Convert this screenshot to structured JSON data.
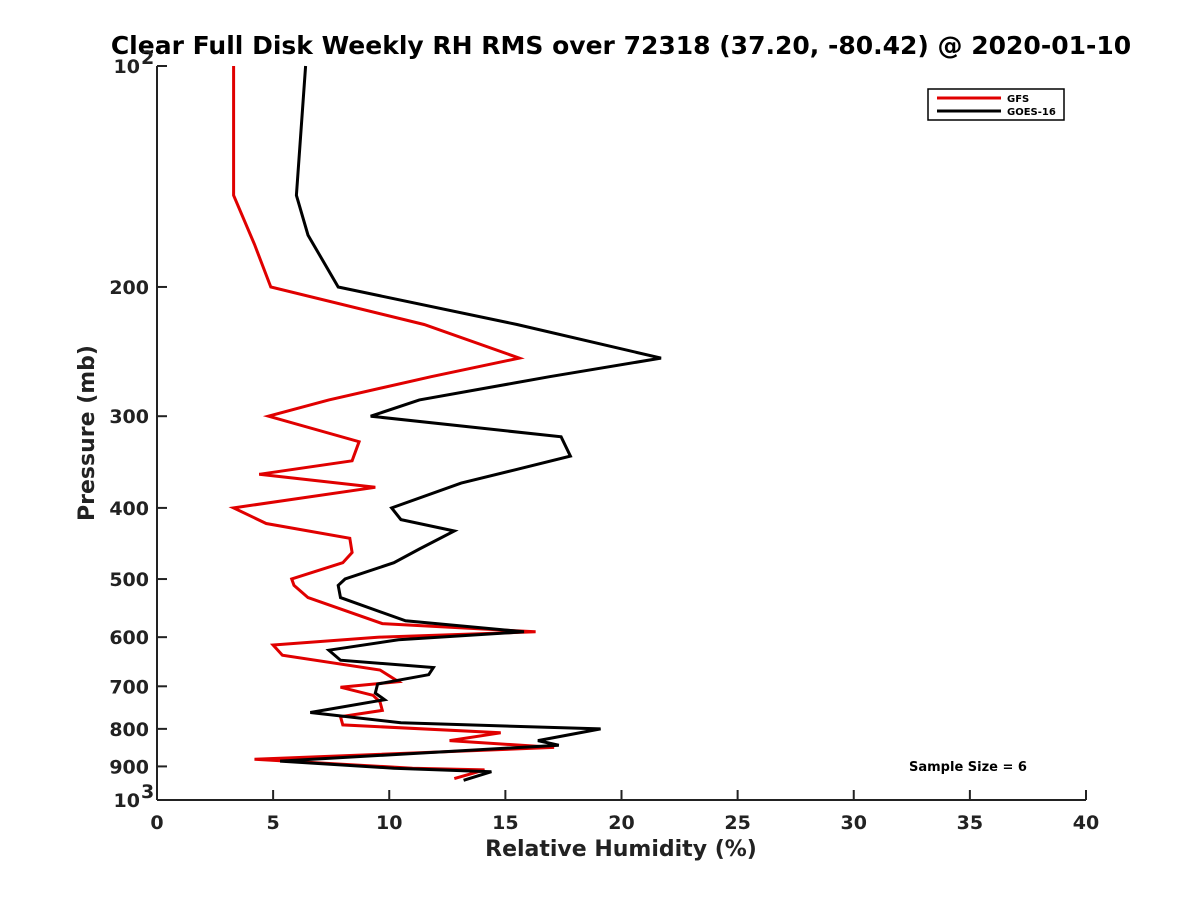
{
  "chart_data": {
    "type": "line",
    "title": "Clear Full Disk Weekly RH RMS over 72318 (37.20, -80.42) @ 2020-01-10",
    "xlabel": "Relative Humidity (%)",
    "ylabel": "Pressure (mb)",
    "xlim": [
      0,
      40
    ],
    "ylim": [
      100,
      1000
    ],
    "y_scale": "log",
    "y_reversed": true,
    "x_ticks": [
      "0",
      "5",
      "10",
      "15",
      "20",
      "25",
      "30",
      "35",
      "40"
    ],
    "y_ticks": [
      {
        "value": 100,
        "base": "10",
        "exp": "2"
      },
      {
        "value": 200,
        "label": "200"
      },
      {
        "value": 300,
        "label": "300"
      },
      {
        "value": 400,
        "label": "400"
      },
      {
        "value": 500,
        "label": "500"
      },
      {
        "value": 600,
        "label": "600"
      },
      {
        "value": 700,
        "label": "700"
      },
      {
        "value": 800,
        "label": "800"
      },
      {
        "value": 900,
        "label": "900"
      },
      {
        "value": 1000,
        "base": "10",
        "exp": "3"
      }
    ],
    "grid": false,
    "legend_position": "top-right",
    "annotation": "Sample Size = 6",
    "series": [
      {
        "name": "GFS",
        "color": "#e00000",
        "points": [
          {
            "x": 3.3,
            "p": 100
          },
          {
            "x": 3.3,
            "p": 150
          },
          {
            "x": 4.2,
            "p": 175
          },
          {
            "x": 4.9,
            "p": 200
          },
          {
            "x": 11.5,
            "p": 225
          },
          {
            "x": 15.6,
            "p": 250
          },
          {
            "x": 11.8,
            "p": 265
          },
          {
            "x": 7.4,
            "p": 285
          },
          {
            "x": 4.8,
            "p": 300
          },
          {
            "x": 8.7,
            "p": 325
          },
          {
            "x": 8.4,
            "p": 345
          },
          {
            "x": 4.4,
            "p": 360
          },
          {
            "x": 9.4,
            "p": 375
          },
          {
            "x": 3.3,
            "p": 400
          },
          {
            "x": 4.7,
            "p": 420
          },
          {
            "x": 8.3,
            "p": 440
          },
          {
            "x": 8.4,
            "p": 460
          },
          {
            "x": 8.0,
            "p": 475
          },
          {
            "x": 5.8,
            "p": 500
          },
          {
            "x": 5.9,
            "p": 510
          },
          {
            "x": 6.5,
            "p": 530
          },
          {
            "x": 9.7,
            "p": 575
          },
          {
            "x": 16.3,
            "p": 590
          },
          {
            "x": 9.5,
            "p": 600
          },
          {
            "x": 5.0,
            "p": 615
          },
          {
            "x": 5.4,
            "p": 635
          },
          {
            "x": 9.6,
            "p": 665
          },
          {
            "x": 10.4,
            "p": 690
          },
          {
            "x": 7.9,
            "p": 702
          },
          {
            "x": 9.3,
            "p": 720
          },
          {
            "x": 9.6,
            "p": 735
          },
          {
            "x": 9.7,
            "p": 755
          },
          {
            "x": 7.9,
            "p": 770
          },
          {
            "x": 8.0,
            "p": 790
          },
          {
            "x": 14.8,
            "p": 810
          },
          {
            "x": 12.6,
            "p": 830
          },
          {
            "x": 17.1,
            "p": 848
          },
          {
            "x": 4.2,
            "p": 880
          },
          {
            "x": 11.0,
            "p": 905
          },
          {
            "x": 14.1,
            "p": 910
          },
          {
            "x": 12.8,
            "p": 935
          }
        ]
      },
      {
        "name": "GOES-16",
        "color": "#000000",
        "points": [
          {
            "x": 6.4,
            "p": 100
          },
          {
            "x": 6.0,
            "p": 150
          },
          {
            "x": 6.5,
            "p": 170
          },
          {
            "x": 7.8,
            "p": 200
          },
          {
            "x": 15.5,
            "p": 225
          },
          {
            "x": 21.7,
            "p": 250
          },
          {
            "x": 16.9,
            "p": 265
          },
          {
            "x": 11.3,
            "p": 285
          },
          {
            "x": 9.2,
            "p": 300
          },
          {
            "x": 17.4,
            "p": 320
          },
          {
            "x": 17.8,
            "p": 340
          },
          {
            "x": 15.4,
            "p": 355
          },
          {
            "x": 13.1,
            "p": 370
          },
          {
            "x": 10.1,
            "p": 400
          },
          {
            "x": 10.5,
            "p": 415
          },
          {
            "x": 12.8,
            "p": 430
          },
          {
            "x": 11.3,
            "p": 455
          },
          {
            "x": 10.2,
            "p": 475
          },
          {
            "x": 8.1,
            "p": 500
          },
          {
            "x": 7.8,
            "p": 510
          },
          {
            "x": 7.9,
            "p": 530
          },
          {
            "x": 10.7,
            "p": 570
          },
          {
            "x": 15.8,
            "p": 590
          },
          {
            "x": 10.4,
            "p": 605
          },
          {
            "x": 7.4,
            "p": 625
          },
          {
            "x": 7.9,
            "p": 645
          },
          {
            "x": 11.9,
            "p": 660
          },
          {
            "x": 11.7,
            "p": 675
          },
          {
            "x": 9.5,
            "p": 695
          },
          {
            "x": 9.4,
            "p": 715
          },
          {
            "x": 9.8,
            "p": 730
          },
          {
            "x": 6.6,
            "p": 760
          },
          {
            "x": 10.5,
            "p": 785
          },
          {
            "x": 19.1,
            "p": 800
          },
          {
            "x": 16.4,
            "p": 830
          },
          {
            "x": 17.3,
            "p": 842
          },
          {
            "x": 5.3,
            "p": 885
          },
          {
            "x": 10.2,
            "p": 905
          },
          {
            "x": 14.4,
            "p": 915
          },
          {
            "x": 13.2,
            "p": 940
          }
        ]
      }
    ]
  }
}
